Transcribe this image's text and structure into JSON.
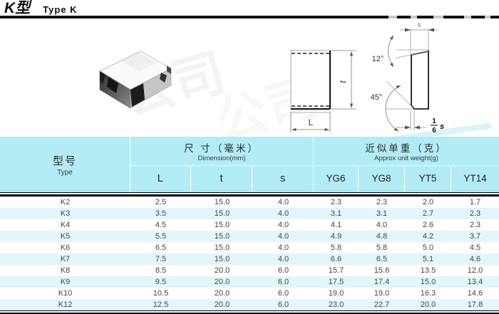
{
  "page": {
    "title_cn": "K型",
    "title_en": "Type K"
  },
  "watermark": {
    "text": "公司"
  },
  "drawing": {
    "t_label": "t",
    "L_label": "L",
    "s_label": "s",
    "angle_top": "12°",
    "angle_bottom": "45°",
    "fraction_numerator": "1",
    "fraction_denominator": "6",
    "fraction_suffix": "s"
  },
  "colors": {
    "header_bg": "#b2ecf5",
    "row_alt_bg": "#e2f6fb",
    "rule": "#000000"
  },
  "table": {
    "header": {
      "type_cn": "型号",
      "type_en": "Type",
      "dim_cn": "尺 寸（毫米）",
      "dim_en": "Dimension(mm)",
      "weight_cn": "近似单重（克）",
      "weight_en": "Approx unit weight(g)",
      "cols": [
        "L",
        "t",
        "s",
        "YG6",
        "YG8",
        "YT5",
        "YT14"
      ]
    },
    "row_keys": [
      "type",
      "L",
      "t",
      "s",
      "YG6",
      "YG8",
      "YT5",
      "YT14"
    ],
    "rows": [
      {
        "type": "K2",
        "L": "2.5",
        "t": "15.0",
        "s": "4.0",
        "YG6": "2.3",
        "YG8": "2.3",
        "YT5": "2.0",
        "YT14": "1.7"
      },
      {
        "type": "K3",
        "L": "3.5",
        "t": "15.0",
        "s": "4.0",
        "YG6": "3.1",
        "YG8": "3.1",
        "YT5": "2.7",
        "YT14": "2.3"
      },
      {
        "type": "K4",
        "L": "4.5",
        "t": "15.0",
        "s": "4.0",
        "YG6": "4.1",
        "YG8": "4.0",
        "YT5": "2.6",
        "YT14": "2.3"
      },
      {
        "type": "K5",
        "L": "5.5",
        "t": "15.0",
        "s": "4.0",
        "YG6": "4.9",
        "YG8": "4.8",
        "YT5": "4.2",
        "YT14": "3.7"
      },
      {
        "type": "K6",
        "L": "6.5",
        "t": "15.0",
        "s": "4.0",
        "YG6": "5.8",
        "YG8": "5.8",
        "YT5": "5.0",
        "YT14": "4.5"
      },
      {
        "type": "K7",
        "L": "7.5",
        "t": "15.0",
        "s": "4.0",
        "YG6": "6.6",
        "YG8": "6.5",
        "YT5": "5.1",
        "YT14": "4.6"
      },
      {
        "type": "K8",
        "L": "8.5",
        "t": "20.0",
        "s": "6.0",
        "YG6": "15.7",
        "YG8": "15.6",
        "YT5": "13.5",
        "YT14": "12.0"
      },
      {
        "type": "K9",
        "L": "9.5",
        "t": "20.0",
        "s": "6.0",
        "YG6": "17.5",
        "YG8": "17.4",
        "YT5": "15.0",
        "YT14": "13.4"
      },
      {
        "type": "K10",
        "L": "10.5",
        "t": "20.0",
        "s": "6.0",
        "YG6": "19.0",
        "YG8": "19.0",
        "YT5": "16.3",
        "YT14": "14.6"
      },
      {
        "type": "K12",
        "L": "12.5",
        "t": "20.0",
        "s": "6.0",
        "YG6": "23.0",
        "YG8": "22.7",
        "YT5": "20.0",
        "YT14": "17.8"
      }
    ]
  }
}
